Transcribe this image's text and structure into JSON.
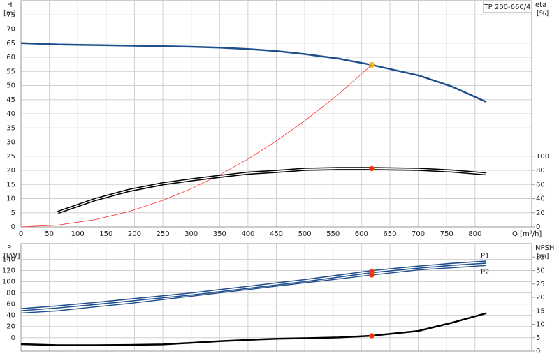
{
  "chart_data": [
    {
      "type": "line",
      "title": "TP 200-660/4",
      "y_label": "H",
      "y_unit": "[m]",
      "y2_label": "eta",
      "y2_unit": "[%]",
      "x_label": "Q [m³/h]",
      "x": [
        0,
        65,
        130,
        190,
        250,
        300,
        350,
        400,
        450,
        500,
        560,
        618,
        700,
        760,
        820
      ],
      "xlim": [
        0,
        900
      ],
      "xticks": [
        0,
        50,
        100,
        150,
        200,
        250,
        300,
        350,
        400,
        450,
        500,
        550,
        600,
        650,
        700,
        750,
        800
      ],
      "xtick_labels": true,
      "ylim": [
        0,
        80
      ],
      "yticks": [
        0,
        5,
        10,
        15,
        20,
        25,
        30,
        35,
        40,
        45,
        50,
        55,
        60,
        65,
        70,
        75
      ],
      "y2lim": [
        0,
        320
      ],
      "y2ticks": [
        0,
        20,
        40,
        60,
        80,
        100
      ],
      "grid": true,
      "marker_x": 618,
      "series": [
        {
          "color": "#1f4e8c",
          "style": "solid",
          "values": [
            65,
            64.5,
            64.3,
            64.1,
            63.9,
            63.7,
            63.4,
            62.9,
            62.2,
            61.1,
            59.5,
            57.3,
            53.6,
            49.6,
            44.2
          ],
          "marker_color": "#f5c518"
        },
        {
          "color": "#ff3030",
          "style": "thin",
          "values": [
            0,
            0.63,
            2.54,
            5.42,
            9.38,
            13.5,
            18.38,
            24.0,
            30.4,
            37.5,
            47.0,
            57.3,
            null,
            null,
            null
          ]
        },
        {
          "color": "#000000",
          "style": "double",
          "axis": "y2",
          "values": [
            null,
            20.5,
            38.5,
            51.5,
            61,
            66.5,
            71.5,
            76,
            78.5,
            81.5,
            82.5,
            82.5,
            81.5,
            79,
            75
          ],
          "marker_color": "#ff2020"
        }
      ]
    },
    {
      "type": "line",
      "y_label": "P",
      "y_unit": "[kW]",
      "y2_label": "NPSH",
      "y2_unit": "[m]",
      "x": [
        0,
        65,
        130,
        190,
        250,
        300,
        350,
        400,
        450,
        500,
        560,
        618,
        700,
        760,
        820
      ],
      "xlim": [
        0,
        900
      ],
      "xticks": [
        0,
        50,
        100,
        150,
        200,
        250,
        300,
        350,
        400,
        450,
        500,
        550,
        600,
        650,
        700,
        750,
        800
      ],
      "xtick_labels": false,
      "ylim": [
        -24,
        168
      ],
      "yticks": [
        0,
        20,
        40,
        60,
        80,
        100,
        120,
        140
      ],
      "y2lim": [
        0,
        40
      ],
      "y2ticks": [
        0,
        5,
        10,
        15,
        20,
        25,
        30,
        35
      ],
      "grid": true,
      "marker_x": 618,
      "series": [
        {
          "name": "P1",
          "color": "#1f4e8c",
          "style": "double",
          "values": [
            50,
            55,
            61,
            67,
            73,
            78,
            84,
            90,
            96,
            102,
            110,
            118,
            126,
            131,
            135
          ],
          "marker_color": "#ff2020"
        },
        {
          "name": "P2",
          "color": "#1f4e8c",
          "style": "solid-thin",
          "values": [
            44,
            48,
            55,
            61,
            68,
            74,
            80,
            86,
            92,
            98,
            105,
            112,
            121,
            125,
            129
          ],
          "marker_color": "#ff2020"
        },
        {
          "color": "#000000",
          "style": "solid",
          "axis": "y2",
          "values": [
            2.6,
            2.2,
            2.2,
            2.3,
            2.5,
            3.1,
            3.7,
            4.2,
            4.6,
            4.8,
            5.1,
            5.7,
            7.5,
            10.6,
            14.1
          ],
          "marker_color": "#ff2020"
        }
      ]
    }
  ]
}
